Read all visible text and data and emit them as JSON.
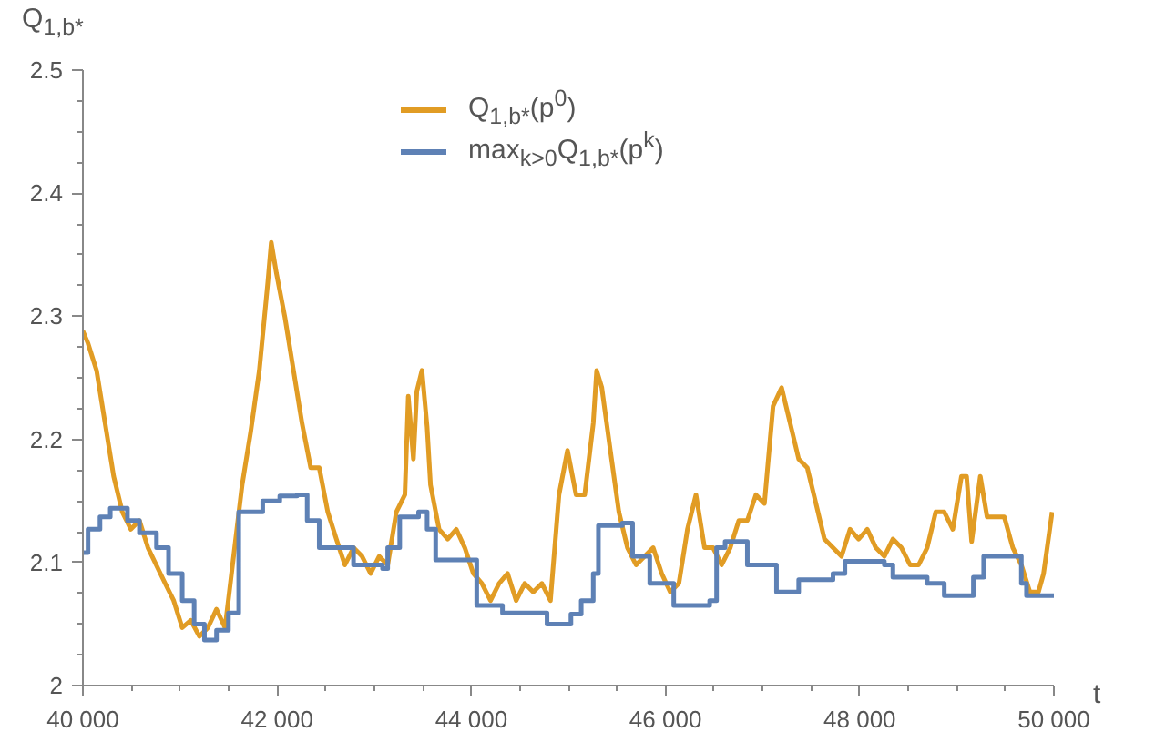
{
  "chart_data": {
    "type": "line",
    "xlabel": "t",
    "ylabel": "Q$_{1,b*}$",
    "xlim": [
      40000,
      50000
    ],
    "ylim": [
      2.0,
      2.5
    ],
    "xticks": [
      {
        "value": 40000,
        "label": "40 000"
      },
      {
        "value": 42000,
        "label": "42 000"
      },
      {
        "value": 44000,
        "label": "44 000"
      },
      {
        "value": 46000,
        "label": "46 000"
      },
      {
        "value": 48000,
        "label": "48 000"
      },
      {
        "value": 50000,
        "label": "50 000"
      }
    ],
    "yticks": [
      2.0,
      2.1,
      2.2,
      2.3,
      2.4,
      2.5
    ],
    "grid": false,
    "legend": "top",
    "series": [
      {
        "name": "Q$_{1,b*}$(p$^{0}$)",
        "color": "#e19c24",
        "x": [
          40000,
          40053,
          40141,
          40229,
          40317,
          40406,
          40494,
          40582,
          40670,
          40847,
          40935,
          41023,
          41111,
          41199,
          41287,
          41376,
          41464,
          41552,
          41640,
          41728,
          41817,
          41905,
          41940,
          41993,
          42081,
          42169,
          42257,
          42346,
          42434,
          42522,
          42610,
          42698,
          42787,
          42875,
          42963,
          43051,
          43139,
          43228,
          43316,
          43351,
          43404,
          43439,
          43492,
          43545,
          43580,
          43668,
          43757,
          43845,
          43933,
          44021,
          44109,
          44198,
          44286,
          44374,
          44462,
          44550,
          44638,
          44727,
          44815,
          44903,
          44991,
          45079,
          45168,
          45256,
          45291,
          45344,
          45432,
          45520,
          45608,
          45697,
          45785,
          45873,
          45961,
          46049,
          46138,
          46226,
          46314,
          46402,
          46490,
          46578,
          46667,
          46755,
          46843,
          46931,
          47019,
          47108,
          47196,
          47284,
          47372,
          47460,
          47549,
          47637,
          47725,
          47813,
          47901,
          47989,
          48078,
          48166,
          48254,
          48342,
          48430,
          48519,
          48607,
          48695,
          48783,
          48871,
          48959,
          49048,
          49101,
          49153,
          49242,
          49312,
          49489,
          49577,
          49665,
          49753,
          49841,
          49894,
          49982
        ],
        "values": [
          2.288,
          2.278,
          2.256,
          2.213,
          2.17,
          2.141,
          2.127,
          2.134,
          2.112,
          2.083,
          2.069,
          2.047,
          2.053,
          2.04,
          2.047,
          2.062,
          2.047,
          2.105,
          2.163,
          2.206,
          2.256,
          2.328,
          2.36,
          2.335,
          2.299,
          2.256,
          2.213,
          2.177,
          2.177,
          2.141,
          2.119,
          2.098,
          2.112,
          2.105,
          2.091,
          2.105,
          2.098,
          2.141,
          2.155,
          2.235,
          2.184,
          2.239,
          2.256,
          2.21,
          2.163,
          2.127,
          2.119,
          2.127,
          2.112,
          2.091,
          2.083,
          2.069,
          2.083,
          2.091,
          2.069,
          2.083,
          2.076,
          2.083,
          2.069,
          2.155,
          2.191,
          2.155,
          2.155,
          2.213,
          2.256,
          2.242,
          2.191,
          2.141,
          2.112,
          2.098,
          2.105,
          2.112,
          2.091,
          2.076,
          2.083,
          2.127,
          2.155,
          2.112,
          2.112,
          2.098,
          2.112,
          2.134,
          2.134,
          2.155,
          2.148,
          2.227,
          2.242,
          2.213,
          2.184,
          2.177,
          2.148,
          2.119,
          2.112,
          2.105,
          2.127,
          2.119,
          2.127,
          2.112,
          2.105,
          2.119,
          2.112,
          2.098,
          2.098,
          2.112,
          2.141,
          2.141,
          2.127,
          2.17,
          2.17,
          2.117,
          2.17,
          2.137,
          2.137,
          2.112,
          2.098,
          2.076,
          2.076,
          2.091,
          2.141
        ]
      },
      {
        "name": "max$_{k>0}$Q$_{1,b*}$(p$^{k}$)",
        "color": "#5e81b5",
        "type": "step",
        "x": [
          40000,
          40053,
          40176,
          40282,
          40459,
          40582,
          40758,
          40882,
          41023,
          41146,
          41252,
          41376,
          41499,
          41605,
          41852,
          42028,
          42205,
          42310,
          42434,
          42787,
          43086,
          43139,
          43263,
          43457,
          43545,
          43633,
          44056,
          44321,
          44780,
          45026,
          45132,
          45256,
          45309,
          45556,
          45661,
          45838,
          46085,
          46455,
          46526,
          46614,
          46843,
          47143,
          47372,
          47725,
          47848,
          48254,
          48342,
          48695,
          48871,
          49171,
          49277,
          49665,
          49718,
          50000
        ],
        "values": [
          2.108,
          2.127,
          2.137,
          2.144,
          2.134,
          2.124,
          2.112,
          2.091,
          2.069,
          2.05,
          2.037,
          2.045,
          2.059,
          2.141,
          2.15,
          2.154,
          2.155,
          2.134,
          2.112,
          2.098,
          2.095,
          2.112,
          2.137,
          2.141,
          2.127,
          2.102,
          2.065,
          2.059,
          2.05,
          2.058,
          2.069,
          2.091,
          2.13,
          2.132,
          2.105,
          2.083,
          2.065,
          2.069,
          2.112,
          2.117,
          2.098,
          2.076,
          2.086,
          2.091,
          2.101,
          2.098,
          2.088,
          2.083,
          2.073,
          2.088,
          2.105,
          2.083,
          2.073,
          2.073
        ]
      }
    ]
  }
}
